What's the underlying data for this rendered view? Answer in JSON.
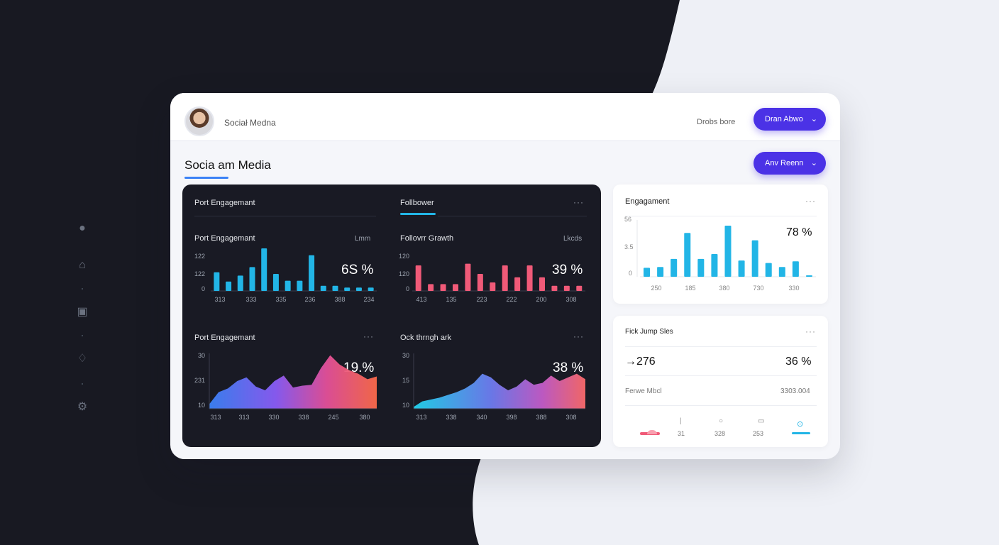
{
  "header": {
    "brand": "Sociał Medna",
    "link": "Drobs bore",
    "button1": "Dran Abwo",
    "button2": "Anv Reenn"
  },
  "page": {
    "title": "Socia am Media"
  },
  "dark_panel": {
    "tabs": [
      "Port Engagemant",
      "Follbower"
    ],
    "charts": [
      {
        "title": "Port Engagemant",
        "sub": "Lmm",
        "pct": "6S %",
        "y_ticks": [
          "122",
          "122",
          "0"
        ],
        "x_ticks": [
          "313",
          "333",
          "335",
          "236",
          "388",
          "234"
        ]
      },
      {
        "title": "Follovrr Grawth",
        "sub": "Lkcds",
        "pct": "39 %",
        "y_ticks": [
          "120",
          "120",
          "0"
        ],
        "x_ticks": [
          "413",
          "135",
          "223",
          "222",
          "200",
          "308"
        ]
      },
      {
        "title": "Port Engagemant",
        "pct": "19.%",
        "y_ticks": [
          "30",
          "231",
          "10"
        ],
        "x_ticks": [
          "313",
          "313",
          "330",
          "338",
          "245",
          "380"
        ]
      },
      {
        "title": "Ock thrngh ark",
        "pct": "38 %",
        "y_ticks": [
          "30",
          "15",
          "10"
        ],
        "x_ticks": [
          "313",
          "338",
          "340",
          "398",
          "388",
          "308"
        ]
      }
    ]
  },
  "engagement_card": {
    "title": "Engagament",
    "pct": "78 %",
    "y_ticks": [
      "56",
      "3.5",
      "0"
    ],
    "x_ticks": [
      "250",
      "185",
      "380",
      "730",
      "330"
    ]
  },
  "stats_card": {
    "title": "Fick Jump Sles",
    "value": "→276",
    "pct": "36 %",
    "label": "Ferwe Mbcl",
    "number": "3303.004",
    "bottom_labels": [
      "31",
      "328",
      "253"
    ]
  },
  "colors": {
    "accent": "#4b32e6",
    "cyan": "#22b5e6",
    "pink": "#f05a78",
    "dark_bg": "#191a24"
  },
  "chart_data": [
    {
      "type": "bar",
      "title": "Port Engagemant",
      "series_color": "#22b5e6",
      "values": [
        22,
        11,
        18,
        28,
        50,
        20,
        12,
        12,
        42,
        6,
        6,
        4,
        4,
        4
      ],
      "ylim": [
        0,
        50
      ]
    },
    {
      "type": "bar",
      "title": "Follovrr Grawth",
      "series_color": "#f05a78",
      "values": [
        30,
        8,
        8,
        8,
        32,
        20,
        10,
        30,
        16,
        30,
        16,
        6,
        6,
        6
      ],
      "ylim": [
        0,
        50
      ]
    },
    {
      "type": "area",
      "title": "Port Engagemant",
      "values": [
        5,
        18,
        22,
        30,
        34,
        24,
        20,
        30,
        36,
        23,
        25,
        26,
        44,
        58,
        48,
        42,
        38,
        32,
        35
      ],
      "ylim": [
        0,
        60
      ]
    },
    {
      "type": "area",
      "title": "Ock thrngh ark",
      "values": [
        2,
        8,
        10,
        12,
        15,
        18,
        22,
        28,
        38,
        34,
        26,
        20,
        24,
        32,
        26,
        28,
        36,
        30,
        34,
        38,
        32
      ],
      "ylim": [
        0,
        60
      ]
    },
    {
      "type": "bar",
      "title": "Engagament",
      "series_color": "#22b5e6",
      "values": [
        11,
        12,
        22,
        54,
        22,
        28,
        63,
        20,
        45,
        17,
        12,
        19,
        1
      ],
      "ylim": [
        0,
        70
      ]
    }
  ]
}
